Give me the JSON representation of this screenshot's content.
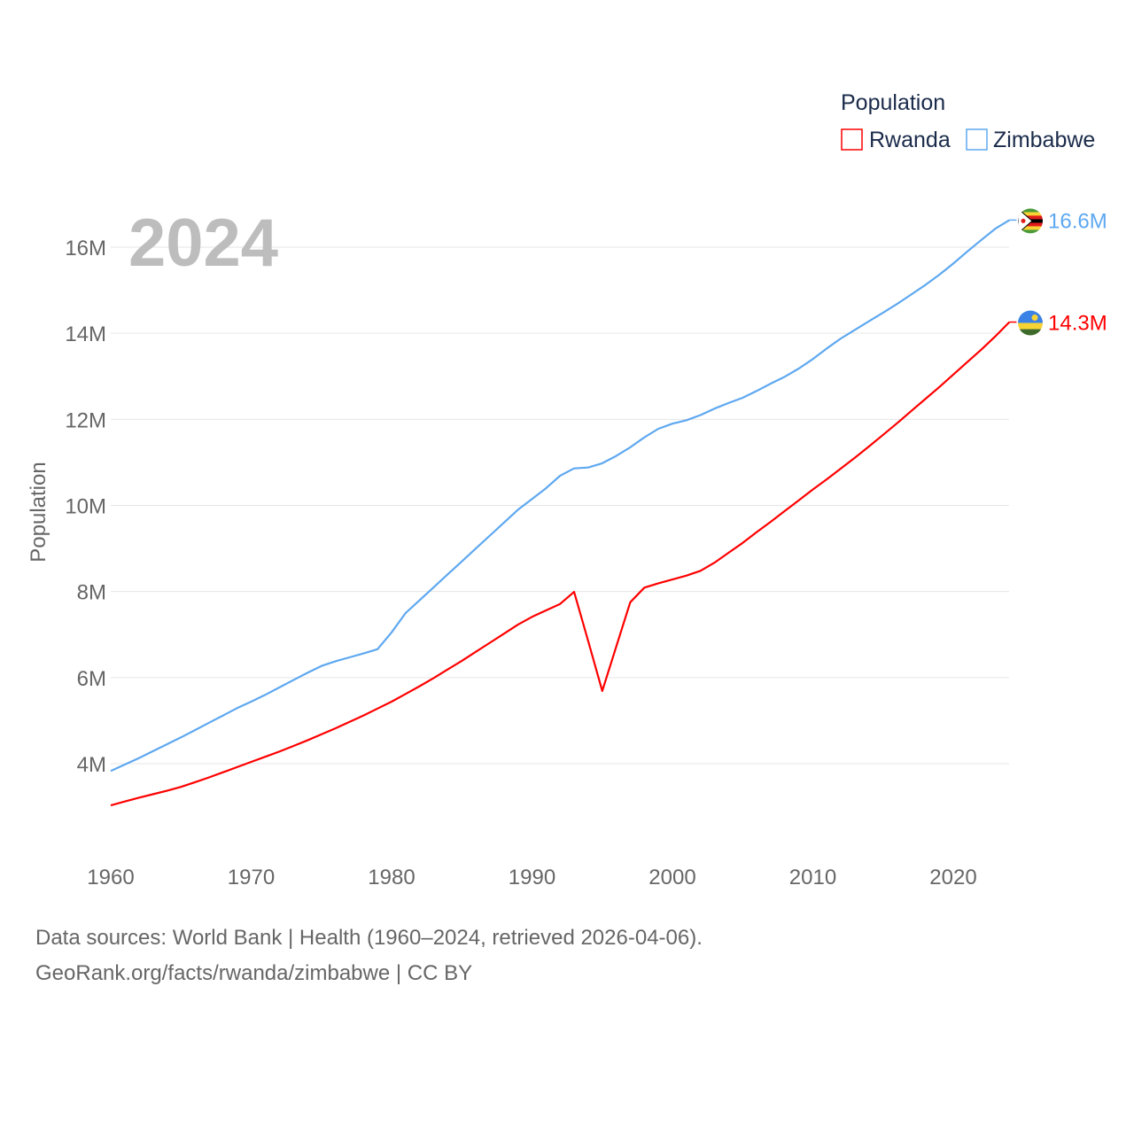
{
  "chart_data": {
    "type": "line",
    "title": "",
    "year_label": "2024",
    "ylabel": "Population",
    "xlabel": "",
    "xlim": [
      1960,
      2024
    ],
    "ylim": [
      2.5,
      17
    ],
    "grid": true,
    "legend": {
      "title": "Population",
      "placement": "top-right"
    },
    "x_ticks": [
      "1960",
      "1970",
      "1980",
      "1990",
      "2000",
      "2010",
      "2020"
    ],
    "y_ticks": [
      {
        "v": 4,
        "label": "4M"
      },
      {
        "v": 6,
        "label": "6M"
      },
      {
        "v": 8,
        "label": "8M"
      },
      {
        "v": 10,
        "label": "10M"
      },
      {
        "v": 12,
        "label": "12M"
      },
      {
        "v": 14,
        "label": "14M"
      },
      {
        "v": 16,
        "label": "16M"
      }
    ],
    "x_start": 1960,
    "units": "millions",
    "series": [
      {
        "name": "Rwanda",
        "color": "#ff0000",
        "end_label": "14.3M",
        "flag": "rwanda-flag",
        "values": [
          3.03,
          3.12,
          3.21,
          3.29,
          3.37,
          3.46,
          3.57,
          3.68,
          3.8,
          3.92,
          4.04,
          4.16,
          4.28,
          4.41,
          4.54,
          4.68,
          4.82,
          4.97,
          5.12,
          5.28,
          5.44,
          5.62,
          5.8,
          5.99,
          6.19,
          6.39,
          6.6,
          6.81,
          7.02,
          7.23,
          7.41,
          7.56,
          7.71,
          7.99,
          6.85,
          5.69,
          6.72,
          7.75,
          8.09,
          8.19,
          8.28,
          8.37,
          8.48,
          8.67,
          8.9,
          9.13,
          9.38,
          9.62,
          9.87,
          10.12,
          10.37,
          10.61,
          10.86,
          11.11,
          11.37,
          11.64,
          11.91,
          12.19,
          12.47,
          12.75,
          13.04,
          13.33,
          13.62,
          13.93,
          14.26
        ]
      },
      {
        "name": "Zimbabwe",
        "color": "#5ea8f0",
        "end_label": "16.6M",
        "flag": "zimbabwe-flag",
        "values": [
          3.83,
          3.98,
          4.13,
          4.29,
          4.45,
          4.61,
          4.78,
          4.95,
          5.12,
          5.29,
          5.44,
          5.6,
          5.77,
          5.94,
          6.11,
          6.27,
          6.38,
          6.47,
          6.56,
          6.66,
          7.05,
          7.5,
          7.8,
          8.1,
          8.4,
          8.7,
          9.0,
          9.3,
          9.6,
          9.9,
          10.15,
          10.4,
          10.69,
          10.86,
          10.88,
          10.98,
          11.15,
          11.35,
          11.58,
          11.78,
          11.9,
          11.98,
          12.1,
          12.25,
          12.38,
          12.5,
          12.66,
          12.83,
          12.99,
          13.18,
          13.4,
          13.65,
          13.88,
          14.08,
          14.28,
          14.48,
          14.68,
          14.9,
          15.12,
          15.36,
          15.62,
          15.9,
          16.17,
          16.43,
          16.63
        ]
      }
    ]
  },
  "footer": {
    "line1": "Data sources: World Bank | Health (1960–2024, retrieved 2026-04-06).",
    "line2": "GeoRank.org/facts/rwanda/zimbabwe | CC BY"
  }
}
